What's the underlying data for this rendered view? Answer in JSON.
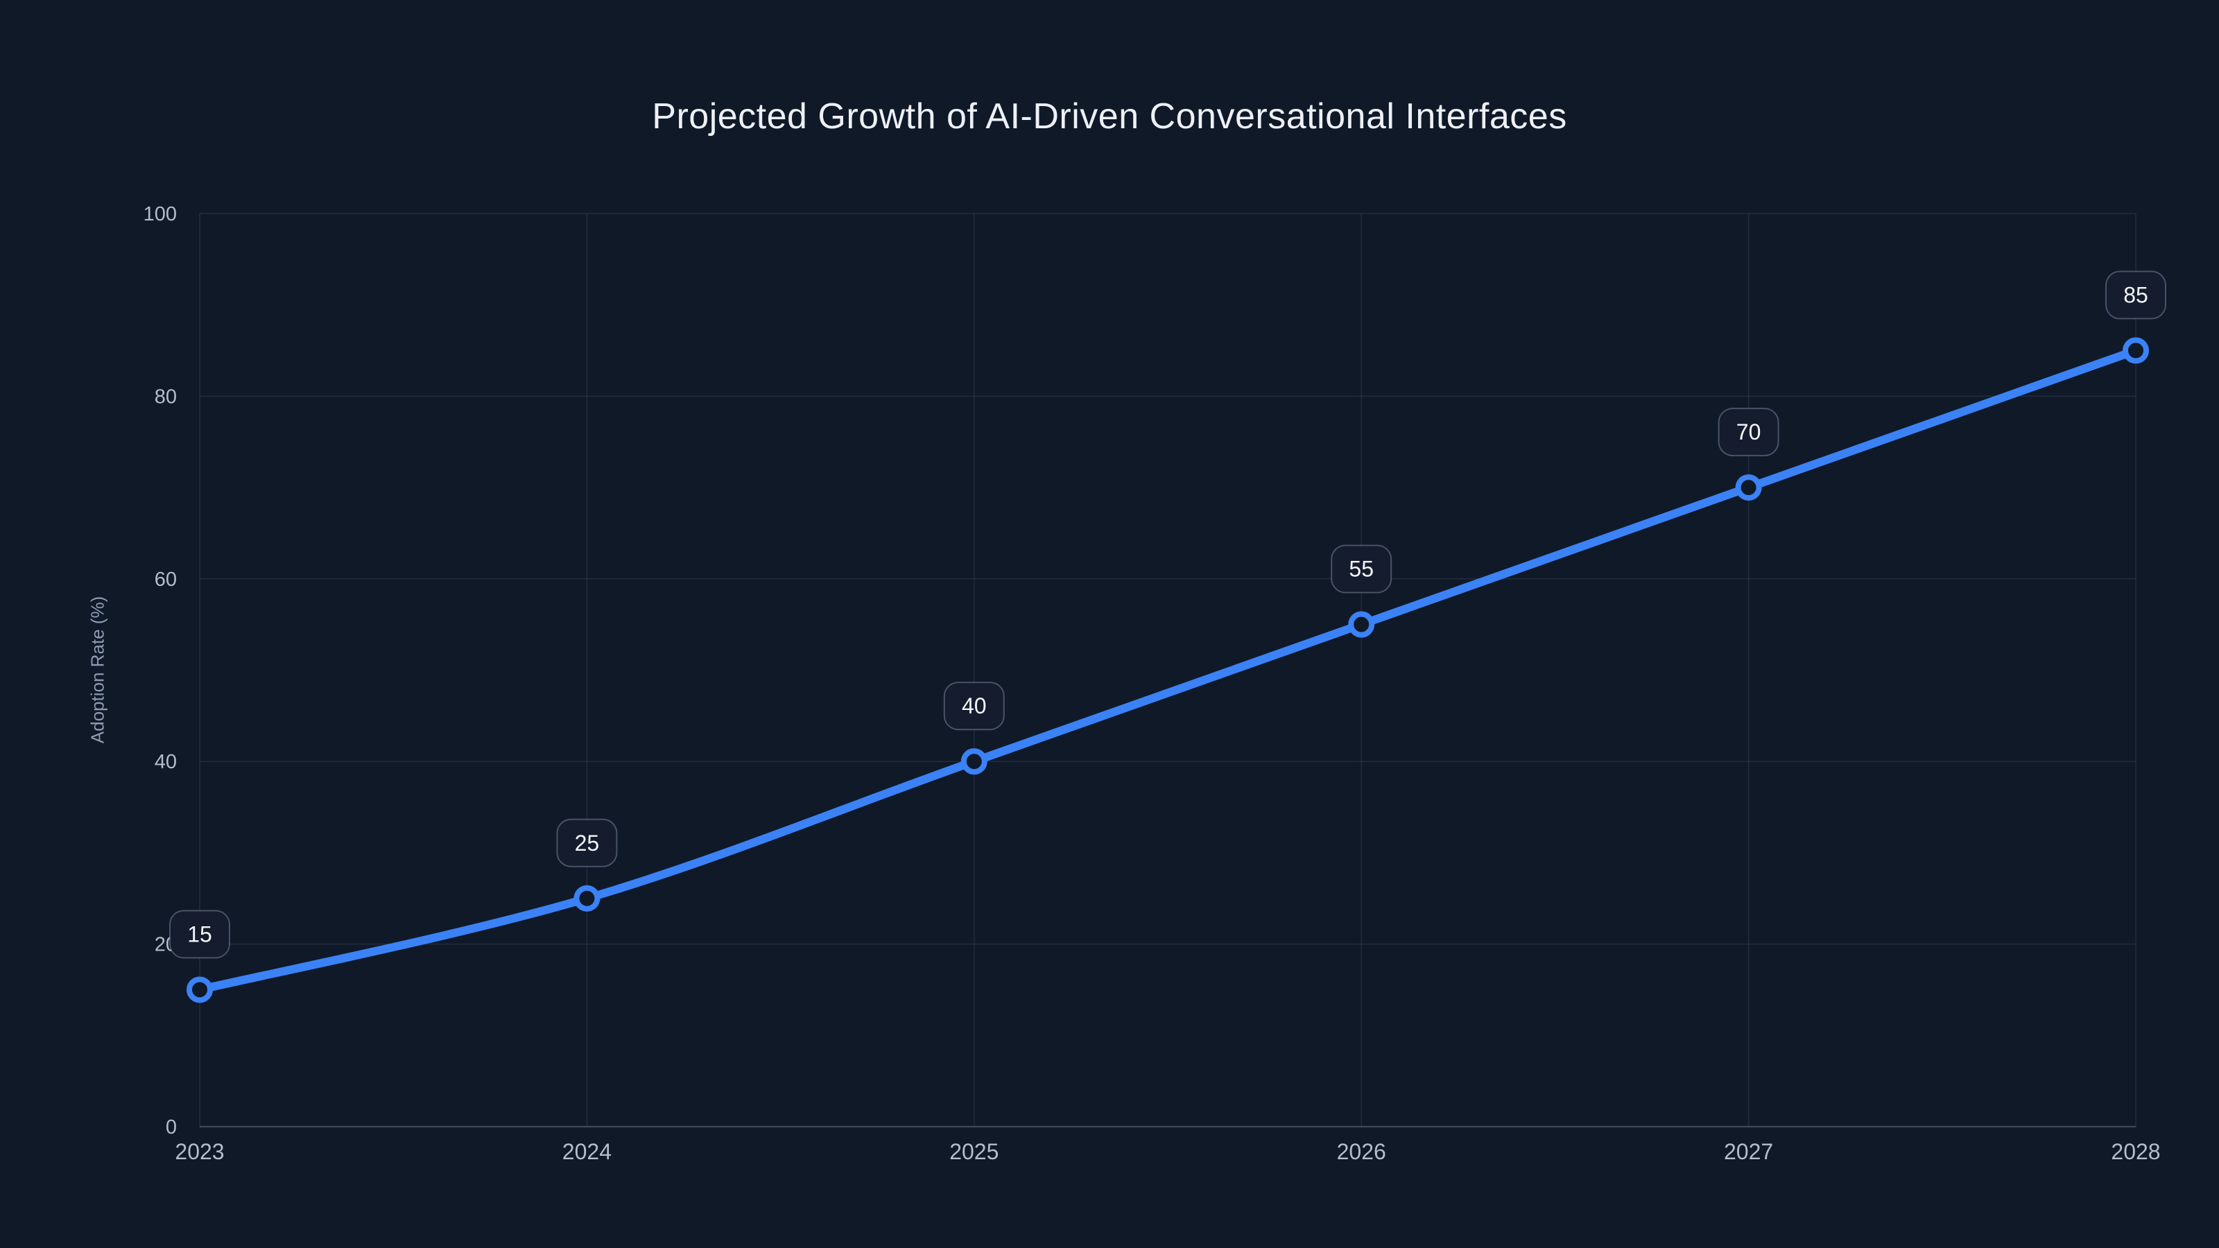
{
  "chart_data": {
    "type": "line",
    "title": "Projected Growth of AI-Driven Conversational Interfaces",
    "categories": [
      "2023",
      "2024",
      "2025",
      "2026",
      "2027",
      "2028"
    ],
    "series": [
      {
        "name": "Adoption Rate",
        "values": [
          15,
          25,
          40,
          55,
          70,
          85
        ]
      }
    ],
    "xlabel": "",
    "ylabel": "Adoption Rate (%)",
    "ylim": [
      0,
      100
    ],
    "yticks": [
      0,
      20,
      40,
      60,
      80,
      100
    ],
    "grid": "both",
    "legend_position": "none",
    "show_point_labels": true,
    "line_style": "smooth",
    "colors": {
      "background": "#101928",
      "line": "#3b82f6",
      "marker_ring": "#3b82f6",
      "marker_fill": "#101928",
      "gridline": "rgba(148,163,184,0.14)",
      "axis_line": "rgba(148,163,184,0.32)",
      "tick_text": "#b3bdcc",
      "axis_title_text": "#8e9bb0",
      "title_text": "#edf1f7",
      "label_box_bg": "#141c2e",
      "label_box_border": "rgba(148,163,184,0.42)",
      "label_text": "#f4f6f9"
    }
  }
}
